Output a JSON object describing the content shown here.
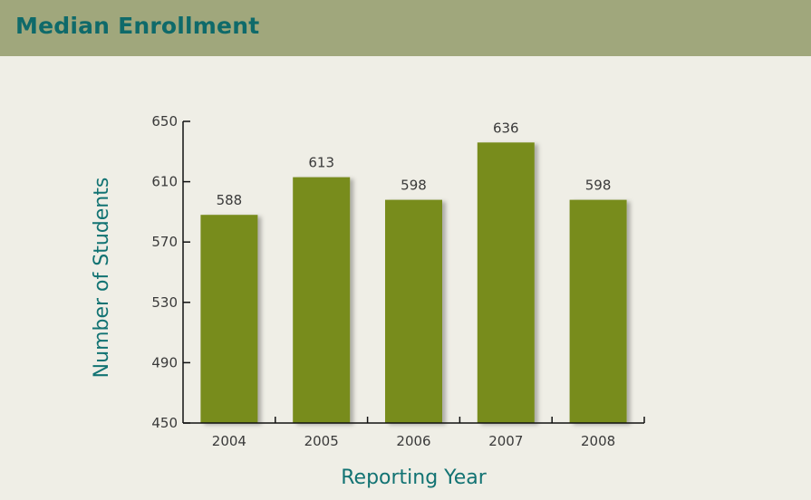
{
  "header": {
    "title": "Median Enrollment"
  },
  "colors": {
    "header_bg": "#a0a77c",
    "title": "#0f6a6a",
    "bar": "#788c1e",
    "axis_title": "#127373",
    "page_bg": "#efeee6"
  },
  "chart_data": {
    "type": "bar",
    "categories": [
      "2004",
      "2005",
      "2006",
      "2007",
      "2008"
    ],
    "values": [
      588,
      613,
      598,
      636,
      598
    ],
    "data_labels": [
      "588",
      "613",
      "598",
      "636",
      "598"
    ],
    "xlabel": "Reporting Year",
    "ylabel": "Number of Students",
    "ylim": [
      450,
      650
    ],
    "yticks": [
      450,
      490,
      530,
      570,
      610,
      650
    ],
    "grid": false,
    "legend": "none"
  }
}
